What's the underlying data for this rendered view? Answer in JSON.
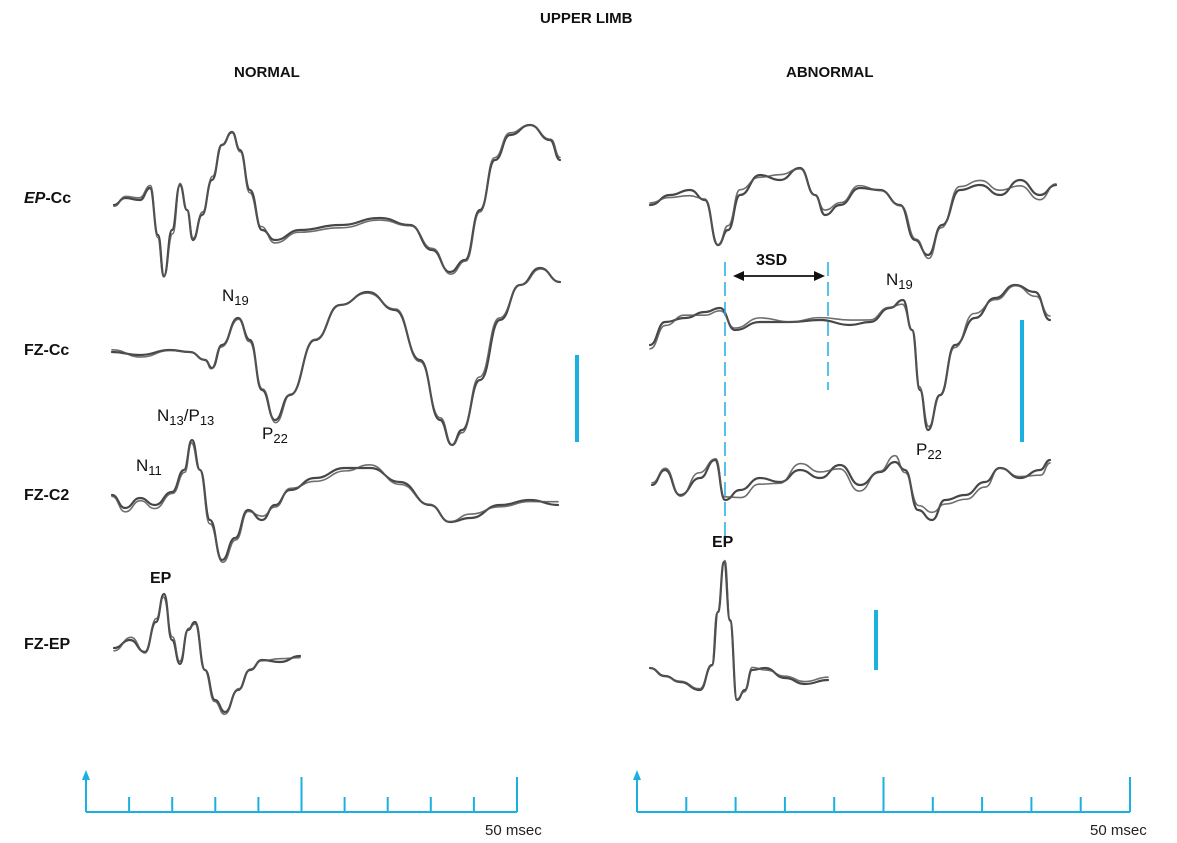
{
  "figure": {
    "title": "UPPER LIMB",
    "panels": [
      {
        "id": "normal",
        "title": "NORMAL"
      },
      {
        "id": "abnormal",
        "title": "ABNORMAL"
      }
    ],
    "rows": [
      {
        "label_italic": "EP",
        "label_rest": "-Cc"
      },
      {
        "label": "FZ-Cc"
      },
      {
        "label": "FZ-C2"
      },
      {
        "label": "FZ-EP"
      }
    ],
    "peaks": {
      "n19": {
        "main": "N",
        "sub": "19"
      },
      "p22": {
        "main": "P",
        "sub": "22"
      },
      "n13p13": {
        "main": "N",
        "sub": "13",
        "sep": "/",
        "main2": "P",
        "sub2": "13"
      },
      "n11": {
        "main": "N",
        "sub": "11"
      },
      "ep": "EP"
    },
    "annotations": {
      "three_sd": "3SD"
    },
    "time_axis": {
      "label": "50 msec",
      "ticks": 10
    },
    "colors": {
      "trace": "#333333",
      "accent": "#1ab0e0"
    }
  }
}
